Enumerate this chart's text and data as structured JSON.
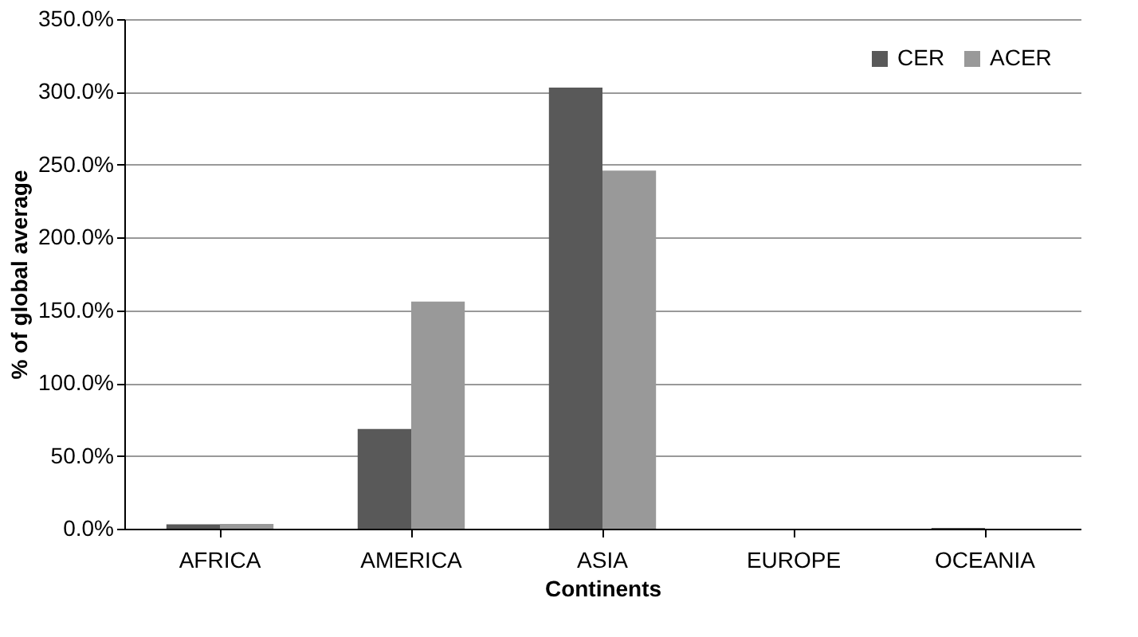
{
  "chart_data": {
    "type": "bar",
    "xlabel": "Continents",
    "ylabel": "% of global average",
    "categories": [
      "AFRICA",
      "AMERICA",
      "ASIA",
      "EUROPE",
      "OCEANIA"
    ],
    "series": [
      {
        "name": "CER",
        "color": "#595959",
        "values": [
          3,
          68.5,
          303,
          0,
          0.5
        ]
      },
      {
        "name": "ACER",
        "color": "#999999",
        "values": [
          3.3,
          156,
          246,
          0,
          0
        ]
      }
    ],
    "ylim": [
      0,
      350
    ],
    "yticks": [
      {
        "value": 0,
        "label": "0.0%"
      },
      {
        "value": 50,
        "label": "50.0%"
      },
      {
        "value": 100,
        "label": "100.0%"
      },
      {
        "value": 150,
        "label": "150.0%"
      },
      {
        "value": 200,
        "label": "200.0%"
      },
      {
        "value": 250,
        "label": "250.0%"
      },
      {
        "value": 300,
        "label": "300.0%"
      },
      {
        "value": 350,
        "label": "350.0%"
      }
    ],
    "grid": "y",
    "legend": "top right"
  }
}
